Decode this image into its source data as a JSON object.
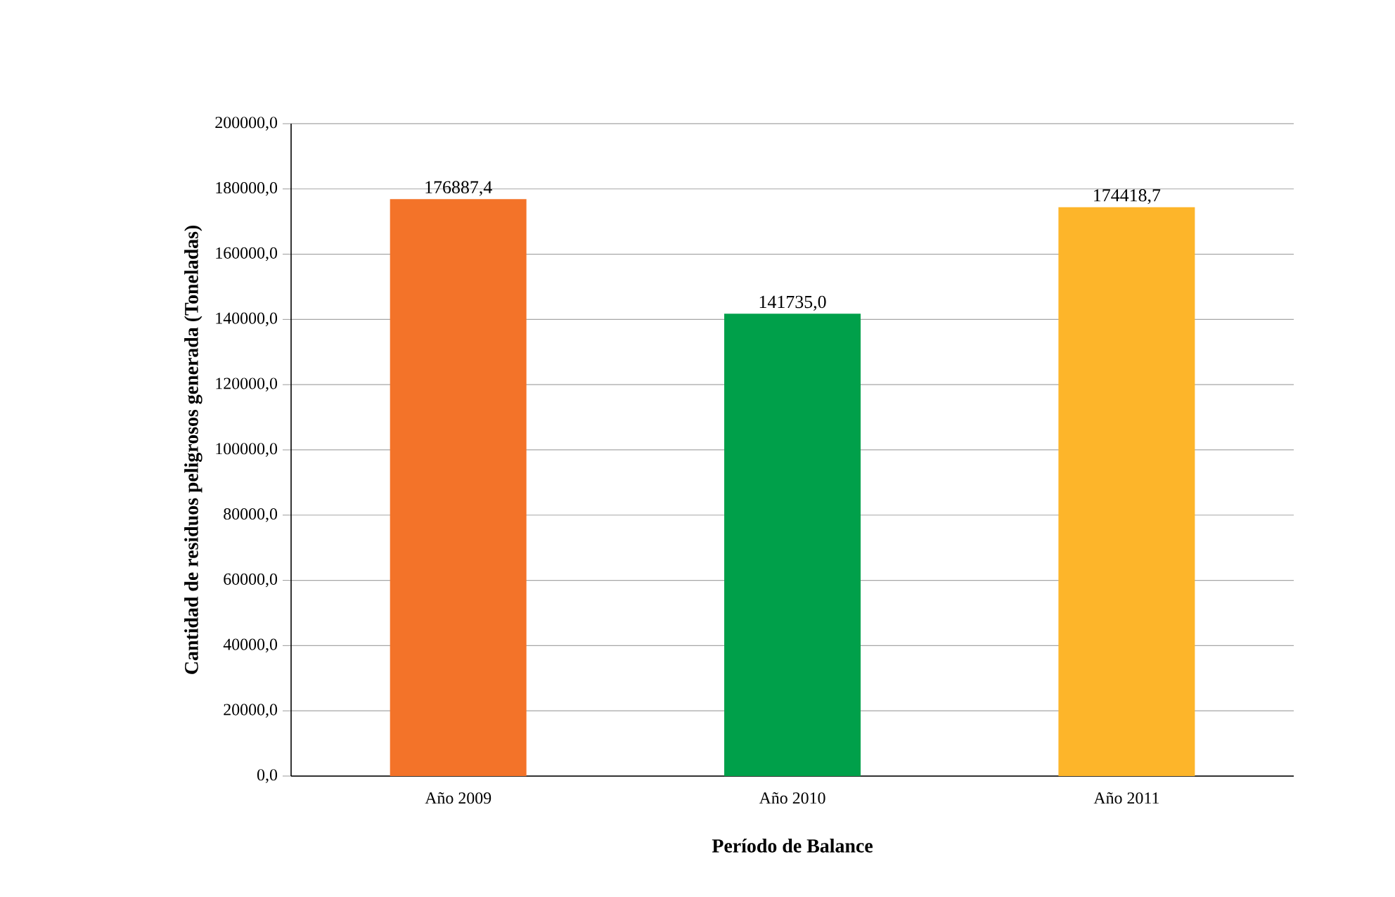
{
  "chart_data": {
    "type": "bar",
    "categories": [
      "Año 2009",
      "Año 2010",
      "Año 2011"
    ],
    "values": [
      176887.4,
      141735.0,
      174418.7
    ],
    "colors": [
      "#f37329",
      "#00a04a",
      "#fdb52a"
    ],
    "value_labels": [
      "176887,4",
      "141735,0",
      "174418,7"
    ],
    "xlabel": "**Período de Balance**",
    "ylabel": "**Cantidad de residuos peligrosos generada (Toneladas)**",
    "ylim": [
      0,
      200000
    ],
    "yticks": [
      {
        "value": 0,
        "label": "0,0"
      },
      {
        "value": 20000,
        "label": "20000,0"
      },
      {
        "value": 40000,
        "label": "40000,0"
      },
      {
        "value": 60000,
        "label": "60000,0"
      },
      {
        "value": 80000,
        "label": "80000,0"
      },
      {
        "value": 100000,
        "label": "100000,0"
      },
      {
        "value": 120000,
        "label": "120000,0"
      },
      {
        "value": 140000,
        "label": "140000,0"
      },
      {
        "value": 160000,
        "label": "160000,0"
      },
      {
        "value": 180000,
        "label": "180000,0"
      },
      {
        "value": 200000,
        "label": "200000,0"
      }
    ],
    "grid": "y"
  }
}
